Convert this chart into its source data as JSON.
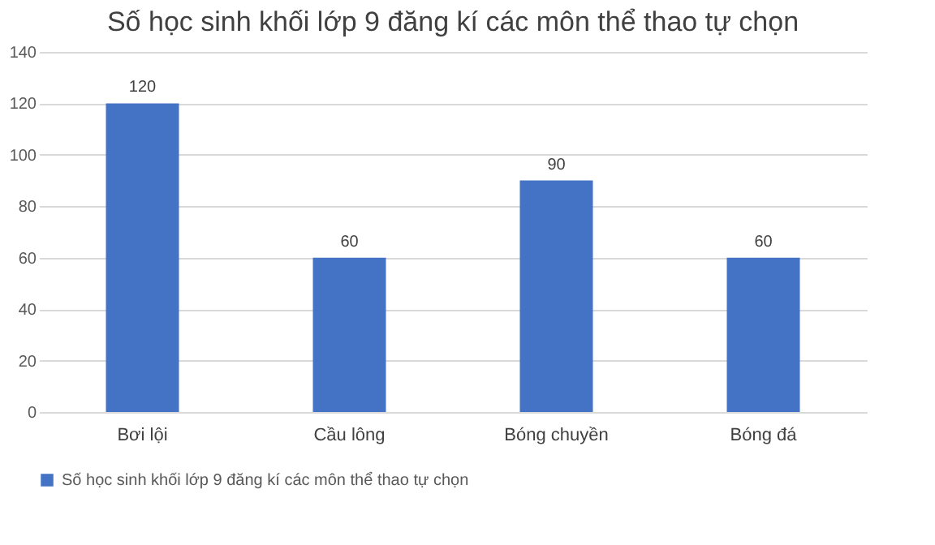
{
  "chart_data": {
    "type": "bar",
    "title": "Số học sinh khối lớp 9 đăng kí các môn thể thao tự chọn",
    "categories": [
      "Bơi lội",
      "Cầu lông",
      "Bóng chuyền",
      "Bóng đá"
    ],
    "series": [
      {
        "name": "Số học sinh khối lớp 9 đăng kí các môn thể thao tự chọn",
        "color": "#4472c4",
        "values": [
          120,
          60,
          90,
          60
        ]
      }
    ],
    "ylim": [
      0,
      140
    ],
    "yticks": [
      0,
      20,
      40,
      60,
      80,
      100,
      120,
      140
    ],
    "grid": "y",
    "legend": "bottom",
    "data_labels": true
  }
}
